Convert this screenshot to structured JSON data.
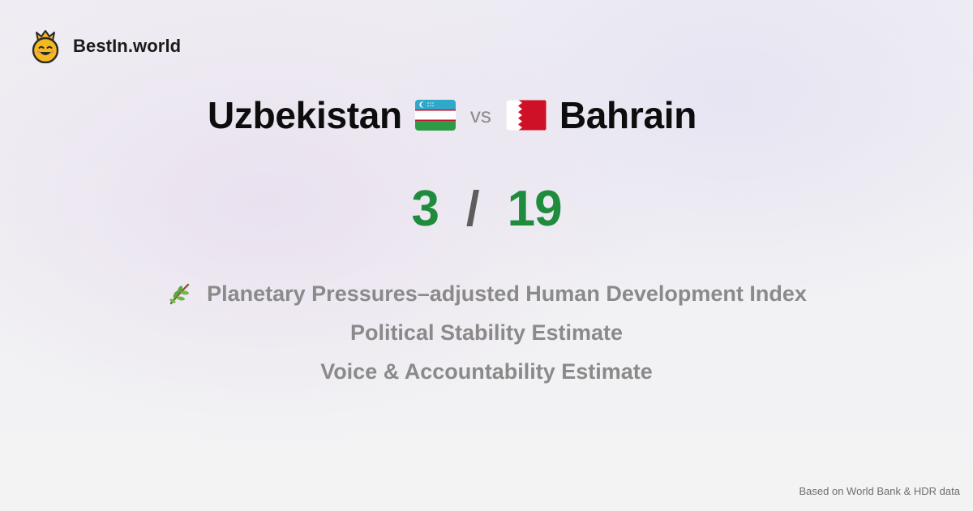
{
  "brand": {
    "name": "BestIn.world",
    "icon": "crown-smiley-icon"
  },
  "comparison": {
    "left_country": "Uzbekistan",
    "left_flag": "uzbekistan-flag-icon",
    "vs_label": "vs",
    "right_country": "Bahrain",
    "right_flag": "bahrain-flag-icon",
    "left_score": "3",
    "separator": "/",
    "right_score": "19"
  },
  "metrics": [
    {
      "label": "Planetary Pressures–adjusted Human Development Index",
      "icon": "herb-branch-icon"
    },
    {
      "label": "Political Stability Estimate"
    },
    {
      "label": "Voice & Accountability Estimate"
    }
  ],
  "footer": {
    "source": "Based on World Bank & HDR data"
  },
  "colors": {
    "score": "#1f8b3c",
    "metric_text": "#8a8a8a",
    "title_text": "#0d0d0d"
  }
}
